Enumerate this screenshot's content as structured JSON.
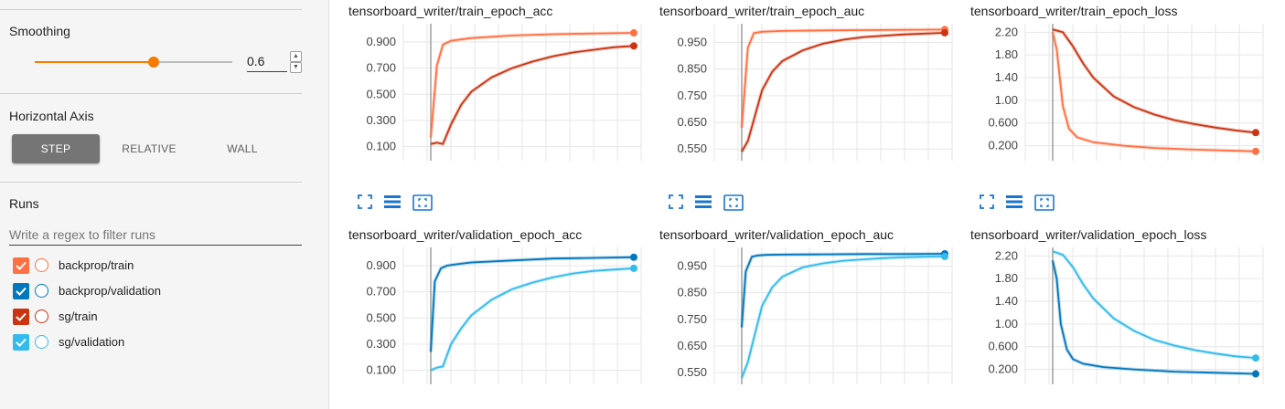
{
  "sidebar": {
    "smoothing": {
      "title": "Smoothing",
      "value": "0.6",
      "fraction": 0.6,
      "accent": "#f57c00"
    },
    "horizontal_axis": {
      "title": "Horizontal Axis",
      "buttons": [
        "STEP",
        "RELATIVE",
        "WALL"
      ],
      "selected": "STEP"
    },
    "runs": {
      "title": "Runs",
      "filter_placeholder": "Write a regex to filter runs",
      "items": [
        {
          "label": "backprop/train",
          "color": "#ff7043",
          "checked": true
        },
        {
          "label": "backprop/validation",
          "color": "#0277bd",
          "checked": true
        },
        {
          "label": "sg/train",
          "color": "#cc3311",
          "checked": true
        },
        {
          "label": "sg/validation",
          "color": "#33bbee",
          "checked": true
        }
      ]
    }
  },
  "toolbar_icons": [
    "fit-domain-icon",
    "data-table-icon",
    "log-scale-icon"
  ],
  "chart_data": [
    {
      "type": "line",
      "title": "tensorboard_writer/train_epoch_acc",
      "yticks": [
        "0.900",
        "0.700",
        "0.500",
        "0.300",
        "0.100"
      ],
      "ytick_values": [
        0.9,
        0.7,
        0.5,
        0.3,
        0.1
      ],
      "ylim": [
        0.02,
        1.04
      ],
      "series": [
        {
          "color": "#ff7043",
          "x": [
            0,
            0.03,
            0.06,
            0.1,
            0.2,
            0.4,
            0.6,
            0.8,
            1.0
          ],
          "y": [
            0.17,
            0.72,
            0.88,
            0.91,
            0.93,
            0.95,
            0.96,
            0.965,
            0.97
          ]
        },
        {
          "color": "#cc3311",
          "x": [
            0,
            0.03,
            0.06,
            0.1,
            0.15,
            0.2,
            0.3,
            0.4,
            0.5,
            0.6,
            0.7,
            0.8,
            0.9,
            1.0
          ],
          "y": [
            0.12,
            0.13,
            0.12,
            0.27,
            0.42,
            0.52,
            0.63,
            0.7,
            0.75,
            0.79,
            0.82,
            0.84,
            0.86,
            0.87
          ]
        }
      ]
    },
    {
      "type": "line",
      "title": "tensorboard_writer/train_epoch_auc",
      "yticks": [
        "0.950",
        "0.850",
        "0.750",
        "0.650",
        "0.550"
      ],
      "ytick_values": [
        0.95,
        0.85,
        0.75,
        0.65,
        0.55
      ],
      "ylim": [
        0.52,
        1.02
      ],
      "series": [
        {
          "color": "#ff7043",
          "x": [
            0,
            0.03,
            0.06,
            0.1,
            0.2,
            0.4,
            0.6,
            0.8,
            1.0
          ],
          "y": [
            0.63,
            0.93,
            0.985,
            0.99,
            0.993,
            0.995,
            0.996,
            0.997,
            0.998
          ]
        },
        {
          "color": "#cc3311",
          "x": [
            0,
            0.03,
            0.06,
            0.1,
            0.15,
            0.2,
            0.3,
            0.4,
            0.5,
            0.6,
            0.7,
            0.8,
            0.9,
            1.0
          ],
          "y": [
            0.54,
            0.58,
            0.66,
            0.77,
            0.84,
            0.88,
            0.92,
            0.945,
            0.96,
            0.97,
            0.975,
            0.98,
            0.983,
            0.986
          ]
        }
      ]
    },
    {
      "type": "line",
      "title": "tensorboard_writer/train_epoch_loss",
      "yticks": [
        "2.20",
        "1.80",
        "1.40",
        "1.00",
        "0.600",
        "0.200"
      ],
      "ytick_values": [
        2.2,
        1.8,
        1.4,
        1.0,
        0.6,
        0.2
      ],
      "ylim": [
        0.0,
        2.35
      ],
      "series": [
        {
          "color": "#ff7043",
          "x": [
            0,
            0.02,
            0.05,
            0.08,
            0.12,
            0.2,
            0.35,
            0.5,
            0.7,
            1.0
          ],
          "y": [
            2.2,
            1.9,
            0.9,
            0.5,
            0.35,
            0.26,
            0.2,
            0.16,
            0.13,
            0.1
          ]
        },
        {
          "color": "#cc3311",
          "x": [
            0,
            0.05,
            0.1,
            0.15,
            0.2,
            0.3,
            0.4,
            0.5,
            0.6,
            0.7,
            0.8,
            0.9,
            1.0
          ],
          "y": [
            2.25,
            2.2,
            1.95,
            1.65,
            1.4,
            1.07,
            0.88,
            0.75,
            0.65,
            0.58,
            0.52,
            0.47,
            0.43
          ]
        }
      ]
    },
    {
      "type": "line",
      "title": "tensorboard_writer/validation_epoch_acc",
      "yticks": [
        "0.900",
        "0.700",
        "0.500",
        "0.300",
        "0.100"
      ],
      "ytick_values": [
        0.9,
        0.7,
        0.5,
        0.3,
        0.1
      ],
      "ylim": [
        0.02,
        1.04
      ],
      "series": [
        {
          "color": "#0277bd",
          "x": [
            0,
            0.02,
            0.05,
            0.08,
            0.12,
            0.2,
            0.4,
            0.6,
            0.8,
            1.0
          ],
          "y": [
            0.24,
            0.78,
            0.88,
            0.9,
            0.91,
            0.925,
            0.94,
            0.955,
            0.96,
            0.965
          ]
        },
        {
          "color": "#33bbee",
          "x": [
            0,
            0.03,
            0.06,
            0.1,
            0.15,
            0.2,
            0.3,
            0.4,
            0.5,
            0.6,
            0.7,
            0.8,
            0.9,
            1.0
          ],
          "y": [
            0.1,
            0.12,
            0.13,
            0.3,
            0.42,
            0.52,
            0.64,
            0.72,
            0.77,
            0.81,
            0.84,
            0.86,
            0.87,
            0.88
          ]
        }
      ]
    },
    {
      "type": "line",
      "title": "tensorboard_writer/validation_epoch_auc",
      "yticks": [
        "0.950",
        "0.850",
        "0.750",
        "0.650",
        "0.550"
      ],
      "ytick_values": [
        0.95,
        0.85,
        0.75,
        0.65,
        0.55
      ],
      "ylim": [
        0.52,
        1.02
      ],
      "series": [
        {
          "color": "#0277bd",
          "x": [
            0,
            0.02,
            0.05,
            0.08,
            0.12,
            0.2,
            0.4,
            0.6,
            0.8,
            1.0
          ],
          "y": [
            0.72,
            0.93,
            0.985,
            0.99,
            0.992,
            0.993,
            0.994,
            0.995,
            0.995,
            0.996
          ]
        },
        {
          "color": "#33bbee",
          "x": [
            0,
            0.03,
            0.06,
            0.1,
            0.15,
            0.2,
            0.3,
            0.4,
            0.5,
            0.6,
            0.7,
            0.8,
            0.9,
            1.0
          ],
          "y": [
            0.53,
            0.59,
            0.68,
            0.8,
            0.87,
            0.91,
            0.945,
            0.96,
            0.97,
            0.975,
            0.98,
            0.983,
            0.985,
            0.986
          ]
        }
      ]
    },
    {
      "type": "line",
      "title": "tensorboard_writer/validation_epoch_loss",
      "yticks": [
        "2.20",
        "1.80",
        "1.40",
        "1.00",
        "0.600",
        "0.200"
      ],
      "ytick_values": [
        2.2,
        1.8,
        1.4,
        1.0,
        0.6,
        0.2
      ],
      "ylim": [
        0.0,
        2.35
      ],
      "series": [
        {
          "color": "#0277bd",
          "x": [
            0,
            0.02,
            0.04,
            0.07,
            0.1,
            0.15,
            0.25,
            0.4,
            0.6,
            0.8,
            1.0
          ],
          "y": [
            2.12,
            1.8,
            1.0,
            0.55,
            0.38,
            0.3,
            0.24,
            0.2,
            0.16,
            0.14,
            0.12
          ]
        },
        {
          "color": "#33bbee",
          "x": [
            0,
            0.05,
            0.1,
            0.15,
            0.2,
            0.3,
            0.4,
            0.5,
            0.6,
            0.7,
            0.8,
            0.9,
            1.0
          ],
          "y": [
            2.28,
            2.22,
            2.0,
            1.7,
            1.45,
            1.1,
            0.88,
            0.72,
            0.62,
            0.54,
            0.48,
            0.43,
            0.4
          ]
        }
      ]
    }
  ]
}
